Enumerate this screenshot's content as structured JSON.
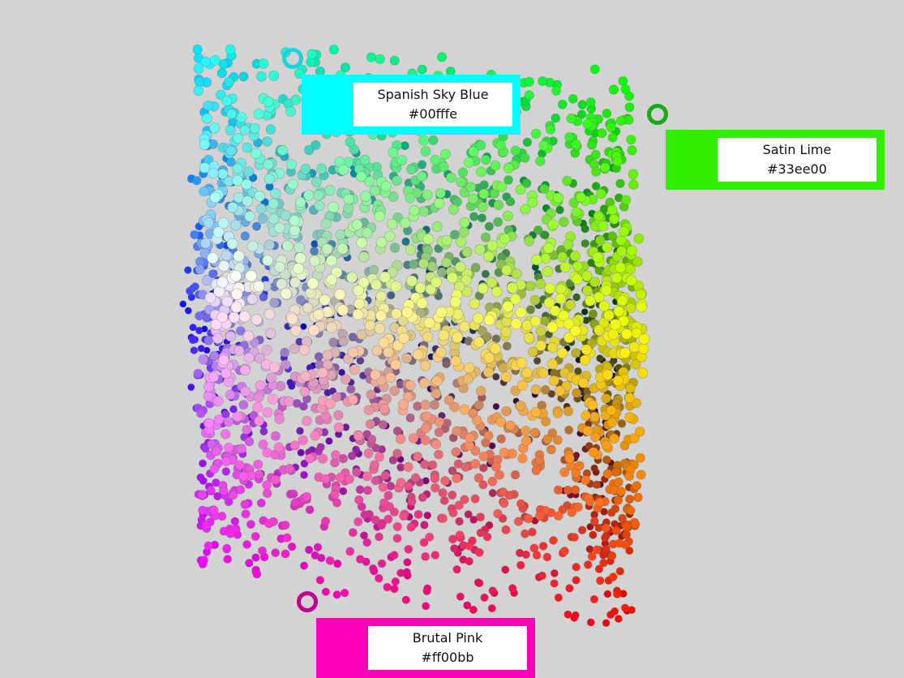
{
  "swatches": [
    {
      "name": "Spanish Sky Blue",
      "hex": "#00fffe",
      "color": "#00fffe",
      "ring_color": "#1ad3dc"
    },
    {
      "name": "Satin Lime",
      "hex": "#33ee00",
      "color": "#33ee00",
      "ring_color": "#1aa81a"
    },
    {
      "name": "Brutal Pink",
      "hex": "#ff00bb",
      "color": "#ff00bb",
      "ring_color": "#c0008e"
    }
  ]
}
